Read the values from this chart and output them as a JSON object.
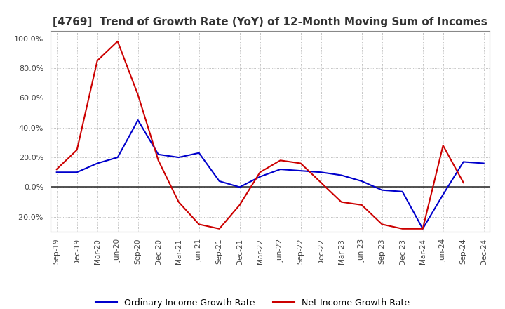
{
  "title": "[4769]  Trend of Growth Rate (YoY) of 12-Month Moving Sum of Incomes",
  "title_fontsize": 11,
  "ylim": [
    -30,
    105
  ],
  "yticks": [
    -20,
    0,
    20,
    40,
    60,
    80,
    100
  ],
  "background_color": "#ffffff",
  "grid_color": "#aaaaaa",
  "ordinary_color": "#0000cc",
  "net_color": "#cc0000",
  "ordinary_label": "Ordinary Income Growth Rate",
  "net_label": "Net Income Growth Rate",
  "x_labels": [
    "Sep-19",
    "Dec-19",
    "Mar-20",
    "Jun-20",
    "Sep-20",
    "Dec-20",
    "Mar-21",
    "Jun-21",
    "Sep-21",
    "Dec-21",
    "Mar-22",
    "Jun-22",
    "Sep-22",
    "Dec-22",
    "Mar-23",
    "Jun-23",
    "Sep-23",
    "Dec-23",
    "Mar-24",
    "Jun-24",
    "Sep-24",
    "Dec-24"
  ],
  "ordinary_income_growth": [
    10,
    10,
    16,
    20,
    45,
    22,
    20,
    23,
    4,
    0,
    7,
    12,
    11,
    10,
    8,
    4,
    -2,
    -3,
    -28,
    -5,
    17,
    16
  ],
  "net_income_growth": [
    12,
    25,
    85,
    98,
    62,
    18,
    -10,
    -25,
    -28,
    -12,
    10,
    18,
    16,
    3,
    -10,
    -12,
    -25,
    -28,
    -28,
    28,
    3,
    null
  ]
}
